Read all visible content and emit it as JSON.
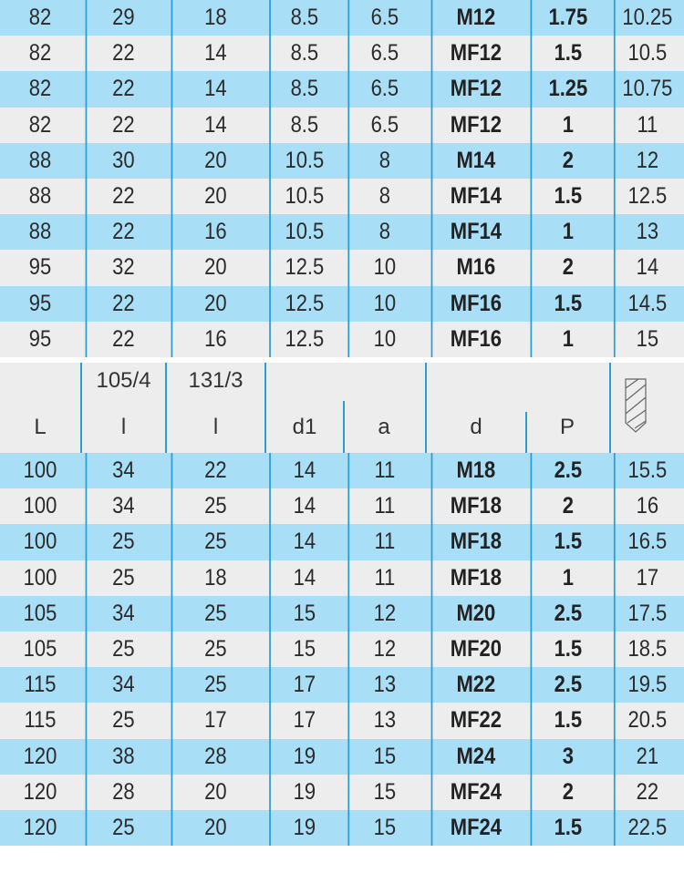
{
  "colors": {
    "row_blue": "#a9def7",
    "row_gray": "#ededed",
    "grid_line": "#2a9fd6"
  },
  "header": {
    "columns": [
      {
        "top": "",
        "bottom": "L"
      },
      {
        "top": "105/4",
        "bottom": "l"
      },
      {
        "top": "131/3",
        "bottom": "l"
      },
      {
        "top": "",
        "bottom": "d1"
      },
      {
        "top": "",
        "bottom": "a"
      },
      {
        "top": "",
        "bottom": "d"
      },
      {
        "top": "",
        "bottom": "P"
      },
      {
        "top": "",
        "bottom": "",
        "icon": "drill-bit-icon"
      }
    ]
  },
  "rows_top": [
    [
      "82",
      "29",
      "18",
      "8.5",
      "6.5",
      "M12",
      "1.75",
      "10.25"
    ],
    [
      "82",
      "22",
      "14",
      "8.5",
      "6.5",
      "MF12",
      "1.5",
      "10.5"
    ],
    [
      "82",
      "22",
      "14",
      "8.5",
      "6.5",
      "MF12",
      "1.25",
      "10.75"
    ],
    [
      "82",
      "22",
      "14",
      "8.5",
      "6.5",
      "MF12",
      "1",
      "11"
    ],
    [
      "88",
      "30",
      "20",
      "10.5",
      "8",
      "M14",
      "2",
      "12"
    ],
    [
      "88",
      "22",
      "20",
      "10.5",
      "8",
      "MF14",
      "1.5",
      "12.5"
    ],
    [
      "88",
      "22",
      "16",
      "10.5",
      "8",
      "MF14",
      "1",
      "13"
    ],
    [
      "95",
      "32",
      "20",
      "12.5",
      "10",
      "M16",
      "2",
      "14"
    ],
    [
      "95",
      "22",
      "20",
      "12.5",
      "10",
      "MF16",
      "1.5",
      "14.5"
    ],
    [
      "95",
      "22",
      "16",
      "12.5",
      "10",
      "MF16",
      "1",
      "15"
    ]
  ],
  "rows_bottom": [
    [
      "100",
      "34",
      "22",
      "14",
      "11",
      "M18",
      "2.5",
      "15.5"
    ],
    [
      "100",
      "34",
      "25",
      "14",
      "11",
      "MF18",
      "2",
      "16"
    ],
    [
      "100",
      "25",
      "25",
      "14",
      "11",
      "MF18",
      "1.5",
      "16.5"
    ],
    [
      "100",
      "25",
      "18",
      "14",
      "11",
      "MF18",
      "1",
      "17"
    ],
    [
      "105",
      "34",
      "25",
      "15",
      "12",
      "M20",
      "2.5",
      "17.5"
    ],
    [
      "105",
      "25",
      "25",
      "15",
      "12",
      "MF20",
      "1.5",
      "18.5"
    ],
    [
      "115",
      "34",
      "25",
      "17",
      "13",
      "M22",
      "2.5",
      "19.5"
    ],
    [
      "115",
      "25",
      "17",
      "17",
      "13",
      "MF22",
      "1.5",
      "20.5"
    ],
    [
      "120",
      "38",
      "28",
      "19",
      "15",
      "M24",
      "3",
      "21"
    ],
    [
      "120",
      "28",
      "20",
      "19",
      "15",
      "MF24",
      "2",
      "22"
    ],
    [
      "120",
      "25",
      "20",
      "19",
      "15",
      "MF24",
      "1.5",
      "22.5"
    ]
  ]
}
